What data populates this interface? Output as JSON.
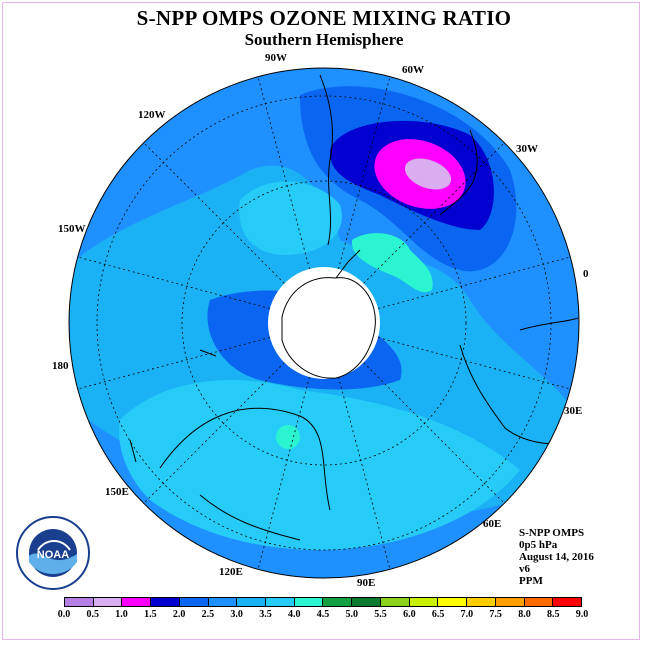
{
  "title": "S-NPP OMPS OZONE MIXING RATIO",
  "subtitle": "Southern Hemisphere",
  "longitude_labels": [
    {
      "text": "90W"
    },
    {
      "text": "60W"
    },
    {
      "text": "30W"
    },
    {
      "text": "0"
    },
    {
      "text": "30E"
    },
    {
      "text": "60E"
    },
    {
      "text": "90E"
    },
    {
      "text": "120E"
    },
    {
      "text": "150E"
    },
    {
      "text": "180"
    },
    {
      "text": "150W"
    },
    {
      "text": "120W"
    }
  ],
  "info": {
    "product": "S-NPP OMPS",
    "level": "0p5 hPa",
    "date": "August 14, 2016",
    "version": "v6",
    "units": "PPM"
  },
  "logo": {
    "text": "NOAA",
    "icon": "noaa-logo"
  },
  "colorbar": {
    "ticks": [
      "0.0",
      "0.5",
      "1.0",
      "1.5",
      "2.0",
      "2.5",
      "3.0",
      "3.5",
      "4.0",
      "4.5",
      "5.0",
      "5.5",
      "6.0",
      "6.5",
      "7.0",
      "7.5",
      "8.0",
      "8.5",
      "9.0"
    ],
    "colors": [
      "#b57fe6",
      "#d9adf0",
      "#ff00ff",
      "#0000d0",
      "#0a66f0",
      "#1e90ff",
      "#1ab2f5",
      "#26ccf7",
      "#2af5d0",
      "#12a040",
      "#0a7a30",
      "#8bd21f",
      "#c8f000",
      "#ffff00",
      "#ffcc00",
      "#ff9f00",
      "#ff6a00",
      "#ff0000",
      "#8b5a3c"
    ]
  },
  "map_colors": {
    "background_2p5": "#1e90ff",
    "ring_3p0": "#1ab2f5",
    "ring_3p5": "#26ccf7",
    "high_4p0": "#2af5d0",
    "low_2p0": "#0a66f0",
    "low_1p5": "#0000d0",
    "low_1p0": "#ff00ff",
    "low_0p5": "#d9adf0",
    "pole_hole": "#ffffff"
  }
}
